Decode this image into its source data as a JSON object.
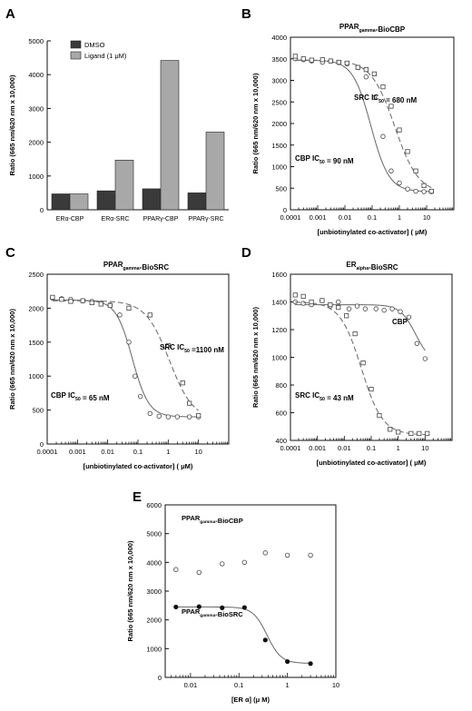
{
  "figure": {
    "panels": [
      "A",
      "B",
      "C",
      "D",
      "E"
    ]
  },
  "chart_data": [
    {
      "panel": "A",
      "type": "bar",
      "title": "",
      "xlabel": "",
      "ylabel": "Ratio (665 nm/620 nm x 10,000)",
      "ylim": [
        0,
        5000
      ],
      "yticks": [
        0,
        1000,
        2000,
        3000,
        4000,
        5000
      ],
      "categories": [
        "ERα-CBP",
        "ERα-SRC",
        "PPARγ-CBP",
        "PPARγ-SRC"
      ],
      "legend": {
        "position": "top-left"
      },
      "series": [
        {
          "name": "DMSO",
          "values": [
            470,
            560,
            620,
            500
          ],
          "color": "#3a3a3a"
        },
        {
          "name": "Ligand (1 μM)",
          "values": [
            470,
            1470,
            4420,
            2300
          ],
          "color": "#a8a8a8"
        }
      ]
    },
    {
      "panel": "B",
      "type": "scatter",
      "title": "PPARgamma-BioCBP",
      "xlabel": "[unbiotinylated co-activator] ( μM)",
      "ylabel": "Ratio (665 nm/620 nm x 10,000)",
      "xscale": "log",
      "xlim": [
        0.0001,
        100
      ],
      "xticks": [
        "0.0001",
        "0.001",
        "0.01",
        "0.1",
        "1",
        "10"
      ],
      "ylim": [
        0,
        4000
      ],
      "yticks": [
        0,
        500,
        1000,
        1500,
        2000,
        2500,
        3000,
        3500,
        4000
      ],
      "series": [
        {
          "marker": "circle",
          "line": "solid",
          "x": [
            0.00015,
            0.0003,
            0.0006,
            0.0015,
            0.003,
            0.006,
            0.012,
            0.03,
            0.06,
            0.12,
            0.25,
            0.5,
            1,
            2,
            4,
            8,
            15
          ],
          "y": [
            3500,
            3480,
            3450,
            3420,
            3450,
            3410,
            3380,
            3300,
            3080,
            2600,
            1700,
            900,
            620,
            480,
            430,
            420,
            420
          ],
          "fit": {
            "top": 3470,
            "bottom": 420,
            "ic50": 0.09,
            "hill": 1.3
          }
        },
        {
          "marker": "square",
          "line": "dashed",
          "x": [
            0.00015,
            0.0003,
            0.0006,
            0.0015,
            0.003,
            0.006,
            0.012,
            0.03,
            0.06,
            0.12,
            0.25,
            0.5,
            1,
            2,
            4,
            8,
            15
          ],
          "y": [
            3560,
            3500,
            3470,
            3480,
            3450,
            3420,
            3400,
            3300,
            3250,
            3150,
            2850,
            2400,
            1850,
            1350,
            900,
            560,
            430
          ],
          "fit": {
            "top": 3470,
            "bottom": 380,
            "ic50": 0.68,
            "hill": 1.0
          }
        }
      ],
      "annotations": [
        "SRC IC50 = 680 nM",
        "CBP IC50 = 90 nM"
      ]
    },
    {
      "panel": "C",
      "type": "scatter",
      "title": "PPARgamma-BioSRC",
      "xlabel": "[unbiotinylated co-activator] ( μM)",
      "ylabel": "Ratio (665 nm/620 nm x 10,000)",
      "xscale": "log",
      "xlim": [
        0.0001,
        100
      ],
      "xticks": [
        "0.0001",
        "0.001",
        "0.01",
        "0.1",
        "1",
        "10"
      ],
      "ylim": [
        0,
        2500
      ],
      "yticks": [
        0,
        500,
        1000,
        1500,
        2000,
        2500
      ],
      "series": [
        {
          "marker": "circle",
          "line": "solid",
          "x": [
            0.00015,
            0.0003,
            0.0006,
            0.0015,
            0.003,
            0.006,
            0.012,
            0.025,
            0.05,
            0.08,
            0.12,
            0.25,
            0.5,
            1,
            2,
            5,
            10
          ],
          "y": [
            2150,
            2140,
            2130,
            2110,
            2100,
            2080,
            2050,
            1900,
            1500,
            1000,
            700,
            450,
            410,
            400,
            400,
            400,
            400
          ],
          "fit": {
            "top": 2120,
            "bottom": 400,
            "ic50": 0.065,
            "hill": 1.6
          }
        },
        {
          "marker": "square",
          "line": "dashed",
          "x": [
            0.00015,
            0.0003,
            0.0006,
            0.0015,
            0.003,
            0.006,
            0.012,
            0.05,
            0.25,
            1,
            3,
            5,
            10
          ],
          "y": [
            2160,
            2130,
            2100,
            2110,
            2080,
            2060,
            2040,
            2000,
            1900,
            1450,
            900,
            600,
            420
          ],
          "fit": {
            "top": 2110,
            "bottom": 350,
            "ic50": 1.1,
            "hill": 1.1
          }
        }
      ],
      "annotations": [
        "SRC IC50 =1100  nM",
        "CBP IC50 = 65 nM"
      ]
    },
    {
      "panel": "D",
      "type": "scatter",
      "title": "ERalpha-BioSRC",
      "xlabel": "[unbiotinylated co-activator] ( μM)",
      "ylabel": "Ratio (665 nm/620 nm x 10,000)",
      "xscale": "log",
      "xlim": [
        0.0001,
        100
      ],
      "xticks": [
        "0.0001",
        "0.001",
        "0.01",
        "0.1",
        "1",
        "10"
      ],
      "ylim": [
        400,
        1600
      ],
      "yticks": [
        400,
        600,
        800,
        1000,
        1200,
        1400,
        1600
      ],
      "series": [
        {
          "marker": "circle",
          "line": "solid",
          "x": [
            0.00015,
            0.0003,
            0.0006,
            0.0015,
            0.003,
            0.006,
            0.015,
            0.03,
            0.06,
            0.15,
            0.3,
            0.6,
            1.2,
            2.5,
            5,
            10
          ],
          "y": [
            1400,
            1390,
            1380,
            1410,
            1370,
            1400,
            1350,
            1370,
            1350,
            1350,
            1340,
            1350,
            1330,
            1290,
            1100,
            990
          ],
          "fit": {
            "top": 1380,
            "bottom": 950,
            "ic50": 4.5,
            "hill": 1.5
          }
        },
        {
          "marker": "square",
          "line": "dashed",
          "x": [
            0.00015,
            0.0003,
            0.0006,
            0.0015,
            0.003,
            0.006,
            0.012,
            0.025,
            0.05,
            0.1,
            0.2,
            0.5,
            1,
            3,
            6,
            12
          ],
          "y": [
            1450,
            1440,
            1400,
            1410,
            1380,
            1360,
            1300,
            1170,
            960,
            770,
            580,
            480,
            460,
            450,
            450,
            450
          ],
          "fit": {
            "top": 1400,
            "bottom": 440,
            "ic50": 0.043,
            "hill": 1.1
          }
        }
      ],
      "annotations": [
        "CBP",
        "SRC IC50 = 43 nM"
      ]
    },
    {
      "panel": "E",
      "type": "scatter",
      "title": "",
      "xlabel": "[ER α] (μ M)",
      "ylabel": "Ratio (665 nm/620 nm x 10,000)",
      "xscale": "log",
      "xlim": [
        0.003,
        10
      ],
      "xticks": [
        "0.01",
        "0.1",
        "1",
        "10"
      ],
      "ylim": [
        0,
        6000
      ],
      "yticks": [
        0,
        1000,
        2000,
        3000,
        4000,
        5000,
        6000
      ],
      "series": [
        {
          "name": "PPARgamma-BioCBP",
          "marker": "open-circle",
          "line": "none",
          "x": [
            0.005,
            0.015,
            0.045,
            0.13,
            0.35,
            1.0,
            3.0
          ],
          "y": [
            3750,
            3650,
            3950,
            4000,
            4330,
            4250,
            4250
          ]
        },
        {
          "name": "PPARgamma-BioSRC",
          "marker": "filled-circle",
          "line": "solid",
          "x": [
            0.005,
            0.015,
            0.045,
            0.13,
            0.35,
            1.0,
            3.0
          ],
          "y": [
            2450,
            2460,
            2420,
            2430,
            1300,
            550,
            480
          ],
          "fit": {
            "top": 2450,
            "bottom": 490,
            "ic50": 0.38,
            "hill": 3.0
          }
        }
      ]
    }
  ]
}
